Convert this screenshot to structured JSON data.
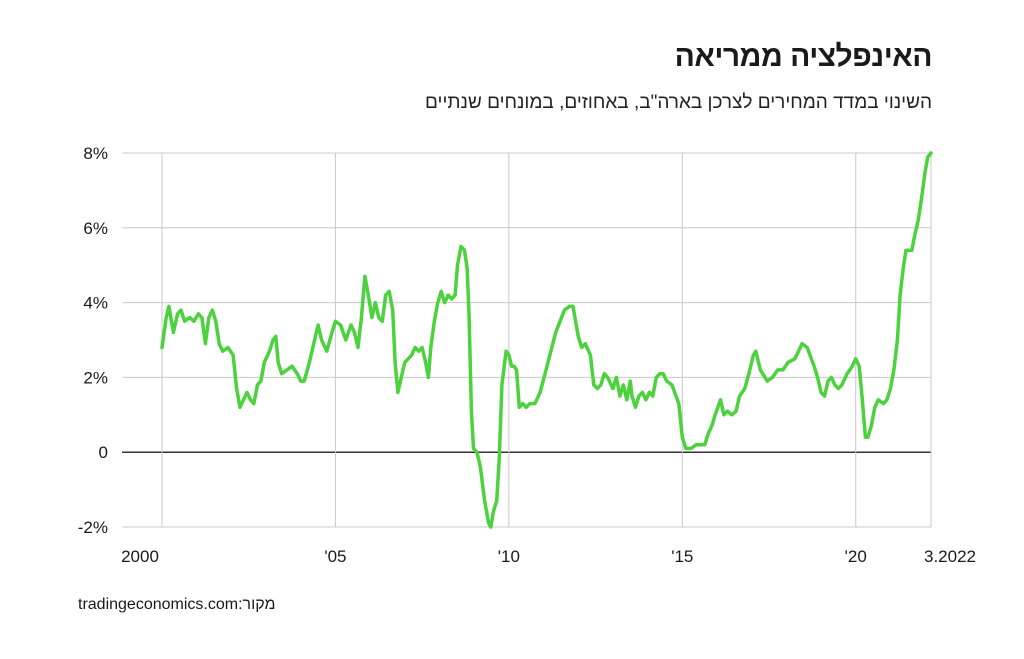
{
  "chart_data": {
    "type": "line",
    "title": "האינפלציה ממריאה",
    "subtitle": "השינוי במדד המחירים לצרכן בארה\"ב, באחוזים, במונחים שנתיים",
    "x_tick_labels": [
      {
        "x": 2000.0,
        "label": "2000"
      },
      {
        "x": 2005.0,
        "label": "'05"
      },
      {
        "x": 2010.0,
        "label": "'10"
      },
      {
        "x": 2015.0,
        "label": "'15"
      },
      {
        "x": 2020.0,
        "label": "'20"
      },
      {
        "x": 2022.17,
        "label": "3.2022"
      }
    ],
    "y_tick_labels": [
      {
        "y": 8,
        "label": "8%"
      },
      {
        "y": 6,
        "label": "6%"
      },
      {
        "y": 4,
        "label": "4%"
      },
      {
        "y": 2,
        "label": "2%"
      },
      {
        "y": 0,
        "label": "0"
      },
      {
        "y": -2,
        "label": "-2%"
      }
    ],
    "xlim": [
      2000.0,
      2022.17
    ],
    "ylim": [
      -2,
      8
    ],
    "grid": true,
    "series": [
      {
        "color": "#4cd23c",
        "points": [
          [
            2000.0,
            2.8
          ],
          [
            2000.12,
            3.6
          ],
          [
            2000.2,
            3.9
          ],
          [
            2000.33,
            3.2
          ],
          [
            2000.45,
            3.7
          ],
          [
            2000.55,
            3.8
          ],
          [
            2000.65,
            3.5
          ],
          [
            2000.8,
            3.6
          ],
          [
            2000.92,
            3.5
          ],
          [
            2001.05,
            3.7
          ],
          [
            2001.15,
            3.6
          ],
          [
            2001.25,
            2.9
          ],
          [
            2001.35,
            3.6
          ],
          [
            2001.45,
            3.8
          ],
          [
            2001.55,
            3.5
          ],
          [
            2001.65,
            2.9
          ],
          [
            2001.75,
            2.7
          ],
          [
            2001.9,
            2.8
          ],
          [
            2002.05,
            2.6
          ],
          [
            2002.15,
            1.7
          ],
          [
            2002.25,
            1.2
          ],
          [
            2002.35,
            1.4
          ],
          [
            2002.45,
            1.6
          ],
          [
            2002.55,
            1.4
          ],
          [
            2002.65,
            1.3
          ],
          [
            2002.75,
            1.8
          ],
          [
            2002.85,
            1.9
          ],
          [
            2002.95,
            2.4
          ],
          [
            2003.1,
            2.7
          ],
          [
            2003.2,
            3.0
          ],
          [
            2003.28,
            3.1
          ],
          [
            2003.35,
            2.4
          ],
          [
            2003.45,
            2.1
          ],
          [
            2003.6,
            2.2
          ],
          [
            2003.75,
            2.3
          ],
          [
            2003.9,
            2.1
          ],
          [
            2004.0,
            1.9
          ],
          [
            2004.1,
            1.9
          ],
          [
            2004.25,
            2.4
          ],
          [
            2004.4,
            3.0
          ],
          [
            2004.5,
            3.4
          ],
          [
            2004.6,
            3.0
          ],
          [
            2004.75,
            2.7
          ],
          [
            2004.9,
            3.2
          ],
          [
            2005.0,
            3.5
          ],
          [
            2005.15,
            3.4
          ],
          [
            2005.3,
            3.0
          ],
          [
            2005.45,
            3.4
          ],
          [
            2005.55,
            3.2
          ],
          [
            2005.65,
            2.8
          ],
          [
            2005.75,
            3.6
          ],
          [
            2005.85,
            4.7
          ],
          [
            2005.93,
            4.3
          ],
          [
            2006.05,
            3.6
          ],
          [
            2006.15,
            4.0
          ],
          [
            2006.25,
            3.6
          ],
          [
            2006.35,
            3.5
          ],
          [
            2006.45,
            4.2
          ],
          [
            2006.55,
            4.3
          ],
          [
            2006.65,
            3.8
          ],
          [
            2006.72,
            2.4
          ],
          [
            2006.8,
            1.6
          ],
          [
            2006.9,
            2.0
          ],
          [
            2007.0,
            2.4
          ],
          [
            2007.1,
            2.5
          ],
          [
            2007.2,
            2.6
          ],
          [
            2007.3,
            2.8
          ],
          [
            2007.4,
            2.7
          ],
          [
            2007.5,
            2.8
          ],
          [
            2007.6,
            2.4
          ],
          [
            2007.68,
            2.0
          ],
          [
            2007.75,
            2.8
          ],
          [
            2007.85,
            3.5
          ],
          [
            2007.95,
            4.0
          ],
          [
            2008.05,
            4.3
          ],
          [
            2008.15,
            4.0
          ],
          [
            2008.25,
            4.2
          ],
          [
            2008.35,
            4.1
          ],
          [
            2008.45,
            4.2
          ],
          [
            2008.52,
            5.0
          ],
          [
            2008.62,
            5.5
          ],
          [
            2008.72,
            5.4
          ],
          [
            2008.8,
            4.9
          ],
          [
            2008.85,
            3.7
          ],
          [
            2008.92,
            1.1
          ],
          [
            2008.98,
            0.1
          ],
          [
            2009.08,
            0.0
          ],
          [
            2009.18,
            -0.4
          ],
          [
            2009.3,
            -1.3
          ],
          [
            2009.42,
            -1.9
          ],
          [
            2009.48,
            -2.0
          ],
          [
            2009.55,
            -1.6
          ],
          [
            2009.65,
            -1.3
          ],
          [
            2009.72,
            -0.2
          ],
          [
            2009.8,
            1.8
          ],
          [
            2009.92,
            2.7
          ],
          [
            2010.0,
            2.6
          ],
          [
            2010.08,
            2.3
          ],
          [
            2010.15,
            2.3
          ],
          [
            2010.22,
            2.2
          ],
          [
            2010.3,
            1.2
          ],
          [
            2010.4,
            1.3
          ],
          [
            2010.5,
            1.2
          ],
          [
            2010.6,
            1.3
          ],
          [
            2010.75,
            1.3
          ],
          [
            2010.9,
            1.6
          ],
          [
            2011.1,
            2.3
          ],
          [
            2011.35,
            3.2
          ],
          [
            2011.6,
            3.8
          ],
          [
            2011.75,
            3.9
          ],
          [
            2011.85,
            3.9
          ],
          [
            2012.0,
            3.1
          ],
          [
            2012.1,
            2.8
          ],
          [
            2012.2,
            2.9
          ],
          [
            2012.35,
            2.6
          ],
          [
            2012.45,
            1.8
          ],
          [
            2012.55,
            1.7
          ],
          [
            2012.65,
            1.8
          ],
          [
            2012.75,
            2.1
          ],
          [
            2012.85,
            2.0
          ],
          [
            2013.0,
            1.7
          ],
          [
            2013.1,
            2.0
          ],
          [
            2013.2,
            1.5
          ],
          [
            2013.3,
            1.8
          ],
          [
            2013.4,
            1.4
          ],
          [
            2013.5,
            1.9
          ],
          [
            2013.55,
            1.5
          ],
          [
            2013.65,
            1.2
          ],
          [
            2013.75,
            1.5
          ],
          [
            2013.85,
            1.6
          ],
          [
            2013.95,
            1.4
          ],
          [
            2014.05,
            1.6
          ],
          [
            2014.15,
            1.5
          ],
          [
            2014.25,
            2.0
          ],
          [
            2014.35,
            2.1
          ],
          [
            2014.45,
            2.1
          ],
          [
            2014.55,
            1.9
          ],
          [
            2014.7,
            1.8
          ],
          [
            2014.9,
            1.3
          ],
          [
            2015.0,
            0.4
          ],
          [
            2015.1,
            0.1
          ],
          [
            2015.25,
            0.1
          ],
          [
            2015.4,
            0.2
          ],
          [
            2015.55,
            0.2
          ],
          [
            2015.65,
            0.2
          ],
          [
            2015.75,
            0.5
          ],
          [
            2015.85,
            0.7
          ],
          [
            2015.95,
            1.0
          ],
          [
            2016.1,
            1.4
          ],
          [
            2016.2,
            1.0
          ],
          [
            2016.3,
            1.1
          ],
          [
            2016.42,
            1.0
          ],
          [
            2016.55,
            1.1
          ],
          [
            2016.65,
            1.5
          ],
          [
            2016.8,
            1.7
          ],
          [
            2016.92,
            2.1
          ],
          [
            2017.05,
            2.6
          ],
          [
            2017.12,
            2.7
          ],
          [
            2017.25,
            2.2
          ],
          [
            2017.45,
            1.9
          ],
          [
            2017.6,
            2.0
          ],
          [
            2017.75,
            2.2
          ],
          [
            2017.9,
            2.2
          ],
          [
            2018.05,
            2.4
          ],
          [
            2018.25,
            2.5
          ],
          [
            2018.45,
            2.9
          ],
          [
            2018.6,
            2.8
          ],
          [
            2018.72,
            2.5
          ],
          [
            2018.8,
            2.3
          ],
          [
            2018.9,
            2.0
          ],
          [
            2019.0,
            1.6
          ],
          [
            2019.1,
            1.5
          ],
          [
            2019.2,
            1.9
          ],
          [
            2019.3,
            2.0
          ],
          [
            2019.4,
            1.8
          ],
          [
            2019.5,
            1.7
          ],
          [
            2019.6,
            1.8
          ],
          [
            2019.75,
            2.1
          ],
          [
            2019.9,
            2.3
          ],
          [
            2020.0,
            2.5
          ],
          [
            2020.1,
            2.3
          ],
          [
            2020.18,
            1.5
          ],
          [
            2020.28,
            0.4
          ],
          [
            2020.35,
            0.4
          ],
          [
            2020.45,
            0.7
          ],
          [
            2020.55,
            1.2
          ],
          [
            2020.65,
            1.4
          ],
          [
            2020.8,
            1.3
          ],
          [
            2020.9,
            1.4
          ],
          [
            2021.0,
            1.7
          ],
          [
            2021.1,
            2.2
          ],
          [
            2021.2,
            3.0
          ],
          [
            2021.28,
            4.2
          ],
          [
            2021.38,
            5.0
          ],
          [
            2021.45,
            5.4
          ],
          [
            2021.55,
            5.4
          ],
          [
            2021.62,
            5.4
          ],
          [
            2021.7,
            5.8
          ],
          [
            2021.8,
            6.2
          ],
          [
            2021.9,
            6.8
          ],
          [
            2022.0,
            7.5
          ],
          [
            2022.08,
            7.9
          ],
          [
            2022.17,
            8.0
          ]
        ]
      }
    ]
  },
  "source": {
    "label": "מקור:",
    "value": "tradingeconomics.com"
  }
}
